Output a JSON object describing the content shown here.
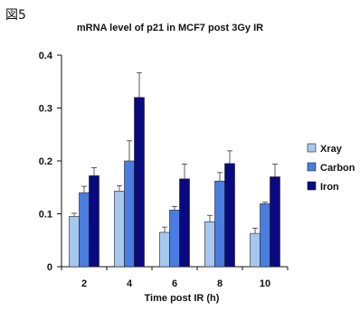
{
  "figure_label": "図5",
  "chart_data": {
    "type": "bar",
    "title": "mRNA level of p21 in MCF7 post 3Gy IR",
    "xlabel": "Time post IR (h)",
    "ylabel": "",
    "categories": [
      "2",
      "4",
      "6",
      "8",
      "10"
    ],
    "ylim": [
      0,
      0.4
    ],
    "yticks": [
      0,
      0.1,
      0.2,
      0.3,
      0.4
    ],
    "ytick_labels": [
      "0",
      "0.1",
      "0.2",
      "0.3",
      "0.4"
    ],
    "grid": false,
    "legend_position": "right",
    "error_bars": "upper",
    "series": [
      {
        "name": "Xray",
        "color": "#a6c8f0",
        "values": [
          0.095,
          0.143,
          0.065,
          0.085,
          0.063
        ],
        "errors": [
          0.006,
          0.01,
          0.01,
          0.012,
          0.01
        ]
      },
      {
        "name": "Carbon",
        "color": "#4a7de0",
        "values": [
          0.14,
          0.2,
          0.107,
          0.162,
          0.119
        ],
        "errors": [
          0.012,
          0.038,
          0.007,
          0.016,
          0.003
        ]
      },
      {
        "name": "Iron",
        "color": "#0a0a80",
        "values": [
          0.172,
          0.32,
          0.166,
          0.195,
          0.17
        ],
        "errors": [
          0.015,
          0.047,
          0.028,
          0.024,
          0.024
        ]
      }
    ]
  }
}
